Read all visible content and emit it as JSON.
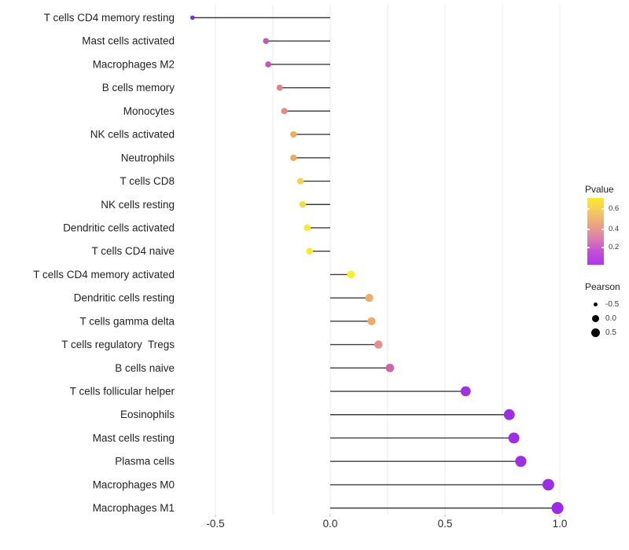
{
  "chart_data": {
    "type": "lollipop",
    "title": "",
    "xlabel": "",
    "ylabel": "",
    "xlim": [
      -0.66,
      1.06
    ],
    "grid": "vertical gridlines every 0.25, no horizontal gridlines, white background",
    "stick_color": "#3c3c3c",
    "x_ticks": [
      {
        "label": "-0.5",
        "value": -0.5
      },
      {
        "label": "0.0",
        "value": 0.0
      },
      {
        "label": "0.5",
        "value": 0.5
      },
      {
        "label": "1.0",
        "value": 1.0
      }
    ],
    "points": [
      {
        "label": "T cells CD4 memory resting",
        "pearson": -0.6,
        "color": "#7c2bd9"
      },
      {
        "label": "Mast cells activated",
        "pearson": -0.28,
        "color": "#c156b5"
      },
      {
        "label": "Macrophages M2",
        "pearson": -0.27,
        "color": "#c353b6"
      },
      {
        "label": "B cells memory",
        "pearson": -0.22,
        "color": "#de8090"
      },
      {
        "label": "Monocytes",
        "pearson": -0.2,
        "color": "#e58c7b"
      },
      {
        "label": "NK cells activated",
        "pearson": -0.16,
        "color": "#eeac60"
      },
      {
        "label": "Neutrophils",
        "pearson": -0.16,
        "color": "#eca75f"
      },
      {
        "label": "T cells CD8",
        "pearson": -0.13,
        "color": "#f3d44e"
      },
      {
        "label": "NK cells resting",
        "pearson": -0.12,
        "color": "#f3da49"
      },
      {
        "label": "Dendritic cells activated",
        "pearson": -0.1,
        "color": "#f8e53e"
      },
      {
        "label": "T cells CD4 naive",
        "pearson": -0.09,
        "color": "#f9e936"
      },
      {
        "label": "T cells CD4 memory activated",
        "pearson": 0.09,
        "color": "#fbee2d"
      },
      {
        "label": "Dendritic cells resting",
        "pearson": 0.17,
        "color": "#f0ae64"
      },
      {
        "label": "T cells gamma delta",
        "pearson": 0.18,
        "color": "#efa968"
      },
      {
        "label": "T cells regulatory  Tregs",
        "pearson": 0.21,
        "color": "#e58e8e"
      },
      {
        "label": "B cells naive",
        "pearson": 0.26,
        "color": "#cc67ac"
      },
      {
        "label": "T cells follicular helper",
        "pearson": 0.59,
        "color": "#9e31e0"
      },
      {
        "label": "Eosinophils",
        "pearson": 0.78,
        "color": "#9c2fe2"
      },
      {
        "label": "Mast cells resting",
        "pearson": 0.8,
        "color": "#9c2fe2"
      },
      {
        "label": "Plasma cells",
        "pearson": 0.83,
        "color": "#9d30e1"
      },
      {
        "label": "Macrophages M0",
        "pearson": 0.95,
        "color": "#9c2de4"
      },
      {
        "label": "Macrophages M1",
        "pearson": 0.99,
        "color": "#9b2be6"
      }
    ],
    "legend_pvalue": {
      "title": "Pvalue",
      "ticks": [
        "0.6",
        "0.4",
        "0.2"
      ],
      "gradient": [
        "#fcea2d",
        "#f5c95e",
        "#eba47f",
        "#dc7fae",
        "#c44fd8",
        "#b136ea"
      ]
    },
    "legend_pearson": {
      "title": "Pearson",
      "items": [
        "-0.5",
        "0.0",
        "0.5"
      ]
    }
  }
}
